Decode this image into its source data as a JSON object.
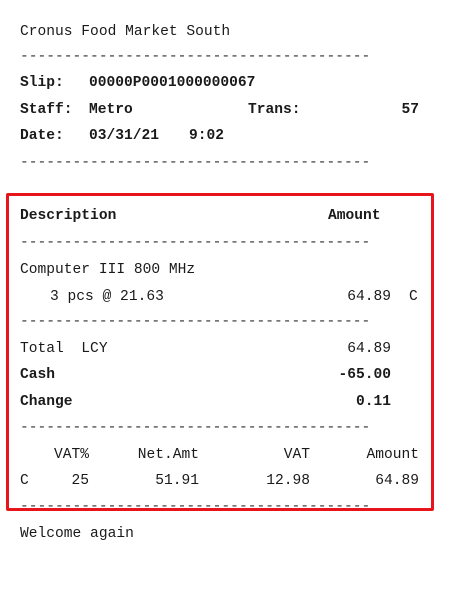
{
  "store_name": "Cronus Food Market South",
  "separator": "----------------------------------------",
  "header": {
    "slip_label": "Slip:",
    "slip_value": "00000P0001000000067",
    "staff_label": "Staff:",
    "staff_value": "Metro",
    "trans_label": "Trans:",
    "trans_value": "57",
    "date_label": "Date:",
    "date_value": "03/31/21",
    "time_value": "9:02"
  },
  "columns": {
    "description": "Description",
    "amount": "Amount"
  },
  "item": {
    "name": "Computer III 800 MHz",
    "qty_line": "3 pcs @ 21.63",
    "amount": "64.89",
    "vat_code": "C"
  },
  "totals": {
    "total_label": "Total  LCY",
    "total_value": "64.89",
    "cash_label": "Cash",
    "cash_value": "-65.00",
    "change_label": "Change",
    "change_value": "0.11"
  },
  "vat_table": {
    "headers": [
      "VAT%",
      "Net.Amt",
      "VAT",
      "Amount"
    ],
    "row": {
      "code": "C",
      "vat_pct": "25",
      "net_amt": "51.91",
      "vat": "12.98",
      "amount": "64.89"
    }
  },
  "footer": "Welcome again",
  "highlight_color": "#e8141b"
}
